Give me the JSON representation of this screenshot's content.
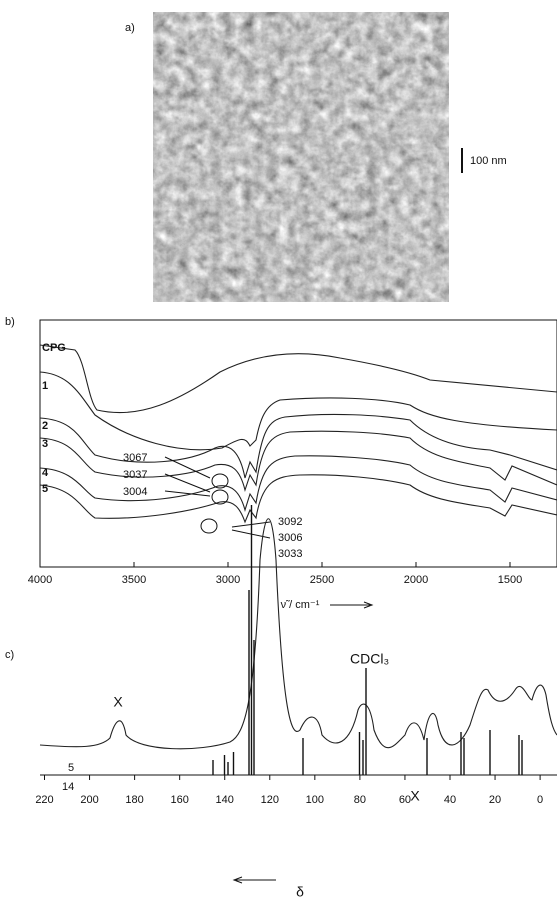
{
  "panel_a": {
    "label": "a)",
    "scale_bar": "100 nm"
  },
  "panel_b": {
    "label": "b)",
    "xlim": [
      4000,
      1250
    ],
    "xticks": [
      4000,
      3500,
      3000,
      2500,
      2000,
      1500
    ],
    "x_label": "ν̃ / cm⁻¹",
    "trace_labels": [
      "CPG",
      "1",
      "2",
      "3",
      "4",
      "5"
    ],
    "annotations_upper": [
      "3067",
      "3037",
      "3004"
    ],
    "annotations_lower": [
      "3092",
      "3006",
      "3033"
    ]
  },
  "panel_c": {
    "label": "c)",
    "xlim": [
      222,
      -7.5
    ],
    "xticks": [
      220,
      200,
      180,
      160,
      140,
      120,
      100,
      80,
      60,
      40,
      20,
      0
    ],
    "x_label": "δ",
    "solvent_label": "CDCl₃",
    "impurity_labels": [
      "X",
      "X"
    ],
    "trace_labels": [
      "5",
      "14"
    ]
  }
}
